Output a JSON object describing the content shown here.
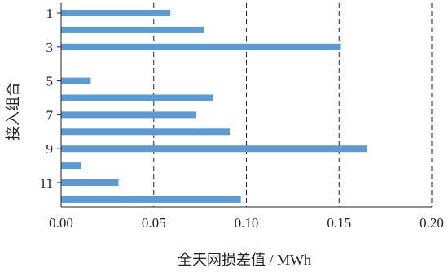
{
  "chart_data": {
    "type": "bar",
    "orientation": "horizontal",
    "xlabel": "全天网损差值 / MWh",
    "ylabel": "接入组合",
    "xlim": [
      0,
      0.2
    ],
    "x_ticks": [
      "0.00",
      "0.05",
      "0.10",
      "0.15",
      "0.20"
    ],
    "x_tick_values": [
      0,
      0.05,
      0.1,
      0.15,
      0.2
    ],
    "categories": [
      "1",
      "2",
      "3",
      "4",
      "5",
      "6",
      "7",
      "8",
      "9",
      "10",
      "11",
      "12"
    ],
    "category_tick_labels": [
      "1",
      "",
      "3",
      "",
      "5",
      "",
      "7",
      "",
      "9",
      "",
      "11",
      ""
    ],
    "values": [
      0.059,
      0.077,
      0.151,
      0,
      0.016,
      0.082,
      0.073,
      0.091,
      0.165,
      0.011,
      0.031,
      0.097
    ],
    "gridlines": "vertical dashed at major x ticks",
    "bar_color": "#5b9bd5"
  }
}
